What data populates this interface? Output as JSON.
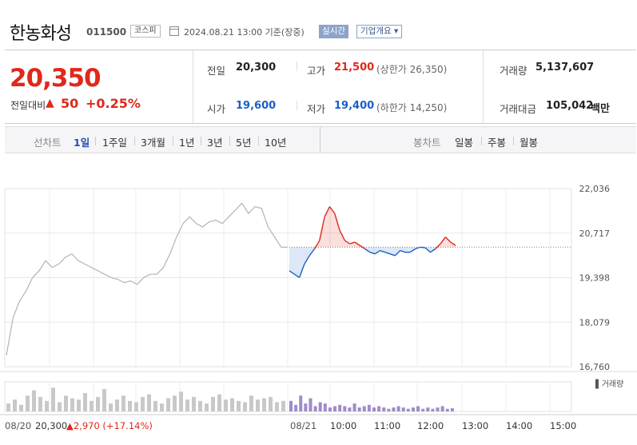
{
  "header": {
    "company_name": "한농화성",
    "code": "011500",
    "market_badge": "코스피",
    "as_of": "2024.08.21 13:00 기준(장중)",
    "realtime_label": "실시간",
    "company_overview_label": "기업개요 ▾"
  },
  "quote": {
    "price": "20,350",
    "change_label": "전일대비",
    "change_arrow": "▲",
    "change_value": "50",
    "change_pct": "+0.25%",
    "prev_close_label": "전일",
    "prev_close": "20,300",
    "high_label": "고가",
    "high": "21,500",
    "upper_limit": "(상한가 26,350)",
    "volume_label": "거래량",
    "volume": "5,137,607",
    "open_label": "시가",
    "open": "19,600",
    "low_label": "저가",
    "low": "19,400",
    "lower_limit": "(하한가 14,250)",
    "trade_value_label": "거래대금",
    "trade_value": "105,042",
    "trade_value_unit": "백만",
    "colors": {
      "up": "#e0281c",
      "down": "#1a5fc6"
    }
  },
  "period_bar": {
    "line_chart_label": "선차트",
    "line_periods": [
      "1일",
      "1주일",
      "3개월",
      "1년",
      "3년",
      "5년",
      "10년"
    ],
    "active_period": "1일",
    "candle_chart_label": "봉차트",
    "candle_periods": [
      "일봉",
      "주봉",
      "월봉"
    ]
  },
  "chart_data": {
    "type": "line",
    "y_ticks": [
      "22,036",
      "20,717",
      "19,398",
      "18,079",
      "16,760"
    ],
    "ylim": [
      16760,
      22036
    ],
    "reference_price": 20300,
    "volume_legend": "거래량",
    "x_labels": [
      "08/21",
      "10:00",
      "11:00",
      "12:00",
      "13:00",
      "14:00",
      "15:00"
    ],
    "prev_day_date": "08/20",
    "prev_day_close": "20,300",
    "prev_day_change": "▲2,970",
    "prev_day_change_pct": "(+17.14%)",
    "series": [
      {
        "period": "08/20",
        "values": [
          17100,
          18200,
          18700,
          19000,
          19400,
          19600,
          19900,
          19700,
          19800,
          20000,
          20100,
          19900,
          19800,
          19700,
          19600,
          19500,
          19400,
          19350,
          19250,
          19300,
          19200,
          19400,
          19500,
          19500,
          19700,
          20100,
          20600,
          21000,
          21200,
          21000,
          20900,
          21050,
          21100,
          21000,
          21200,
          21400,
          21600,
          21300,
          21500,
          21450,
          20900,
          20600,
          20300,
          20300
        ]
      },
      {
        "period": "08/21",
        "values": [
          19600,
          19500,
          19400,
          19800,
          20050,
          20250,
          20500,
          21200,
          21500,
          21300,
          20800,
          20500,
          20400,
          20450,
          20350,
          20250,
          20150,
          20100,
          20200,
          20150,
          20100,
          20050,
          20200,
          20150,
          20150,
          20250,
          20300,
          20280,
          20150,
          20250,
          20400,
          20600,
          20450,
          20350
        ]
      }
    ],
    "volume_per_series": [
      [
        30,
        45,
        25,
        60,
        80,
        55,
        40,
        90,
        35,
        60,
        50,
        45,
        70,
        40,
        55,
        85,
        30,
        45,
        60,
        40,
        35,
        55,
        65,
        40,
        30,
        50,
        60,
        75,
        45,
        55,
        40,
        30,
        55,
        65,
        45,
        50,
        40,
        35,
        60,
        45,
        50,
        55,
        35,
        40
      ],
      [
        40,
        25,
        60,
        30,
        50,
        20,
        35,
        30,
        15,
        20,
        25,
        20,
        15,
        30,
        15,
        20,
        25,
        15,
        20,
        15,
        10,
        15,
        20,
        15,
        10,
        15,
        20,
        10,
        15,
        10,
        15,
        20,
        10,
        12
      ]
    ]
  }
}
